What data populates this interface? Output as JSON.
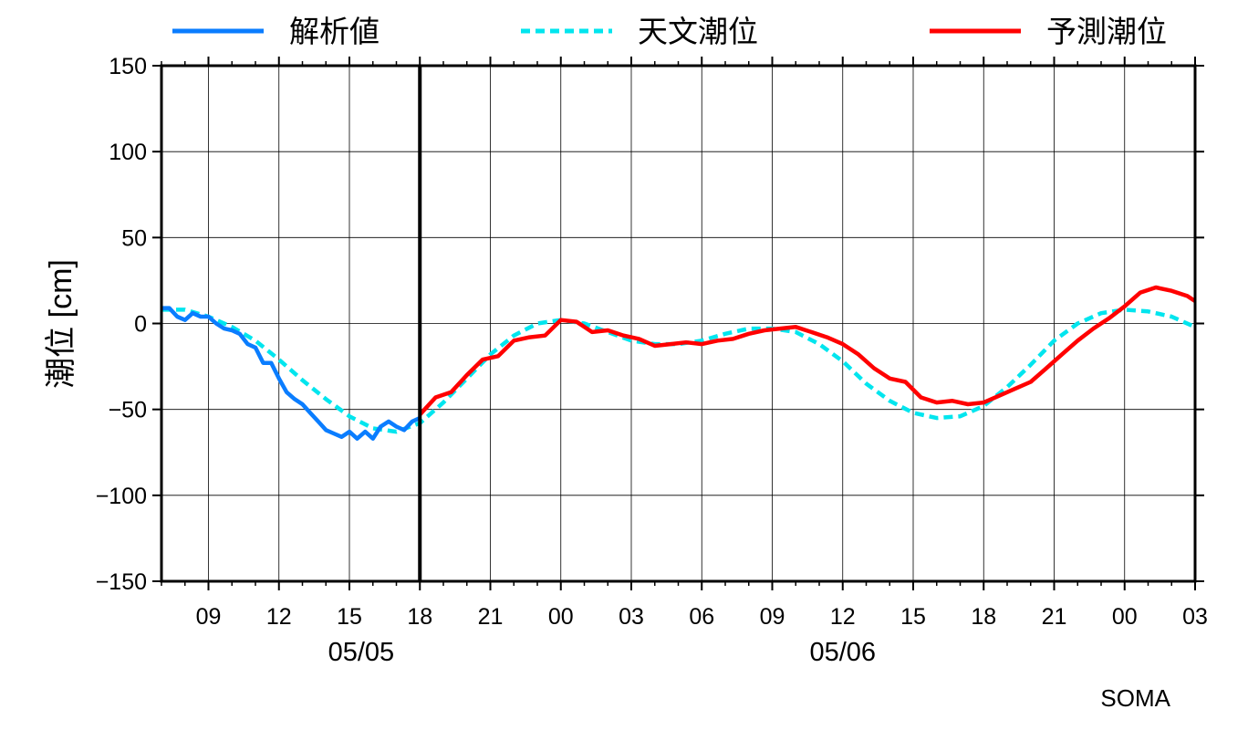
{
  "chart_data": {
    "type": "line",
    "ylabel": "潮位 [cm]",
    "ylim": [
      -150,
      150
    ],
    "yticks": [
      150,
      100,
      50,
      0,
      -50,
      -100,
      -150
    ],
    "ytick_labels": [
      "150",
      "100",
      "50",
      "0",
      "−50",
      "−100",
      "−150"
    ],
    "x_unit": "hours since 05/05 07:00 (axis origin)",
    "xlim": [
      0,
      44
    ],
    "xticks": [
      2,
      5,
      8,
      11,
      14,
      17,
      20,
      23,
      26,
      29,
      32,
      35,
      38,
      41,
      44
    ],
    "xtick_labels": [
      "09",
      "12",
      "15",
      "18",
      "21",
      "00",
      "03",
      "06",
      "09",
      "12",
      "15",
      "18",
      "21",
      "00",
      "03"
    ],
    "date_labels": [
      {
        "x": 8.5,
        "label": "05/05"
      },
      {
        "x": 29,
        "label": "05/06"
      }
    ],
    "current_time_x": 11,
    "station": "SOMA",
    "grid": true,
    "legend_position": "top",
    "series": [
      {
        "name": "解析値",
        "color": "#0a7dff",
        "style": "solid",
        "x": [
          0,
          0.33,
          0.67,
          1,
          1.33,
          1.67,
          2,
          2.33,
          2.67,
          3,
          3.33,
          3.67,
          4,
          4.33,
          4.67,
          5,
          5.33,
          5.67,
          6,
          6.33,
          6.67,
          7,
          7.33,
          7.67,
          8,
          8.33,
          8.67,
          9,
          9.33,
          9.67,
          10,
          10.33,
          10.67,
          11
        ],
        "values": [
          9,
          9,
          4,
          2,
          6,
          4,
          4,
          0,
          -3,
          -4,
          -6,
          -12,
          -14,
          -23,
          -23,
          -32,
          -40,
          -44,
          -47,
          -52,
          -57,
          -62,
          -64,
          -66,
          -63,
          -67,
          -63,
          -67,
          -60,
          -57,
          -60,
          -62,
          -57,
          -55
        ]
      },
      {
        "name": "天文潮位",
        "color": "#00e5ee",
        "style": "dashed",
        "x": [
          0,
          1,
          2,
          3,
          4,
          5,
          6,
          7,
          8,
          9,
          10,
          11,
          12,
          13,
          14,
          15,
          16,
          17,
          18,
          19,
          20,
          21,
          22,
          23,
          24,
          25,
          26,
          27,
          28,
          29,
          30,
          31,
          32,
          33,
          34,
          35,
          36,
          37,
          38,
          39,
          40,
          41,
          42,
          43,
          44
        ],
        "values": [
          8,
          8,
          4,
          -2,
          -10,
          -21,
          -33,
          -44,
          -54,
          -61,
          -63,
          -58,
          -46,
          -32,
          -18,
          -7,
          0,
          2,
          0,
          -5,
          -10,
          -12,
          -12,
          -10,
          -6,
          -3,
          -3,
          -5,
          -12,
          -22,
          -35,
          -45,
          -52,
          -55,
          -54,
          -48,
          -37,
          -24,
          -10,
          0,
          6,
          8,
          7,
          4,
          -2
        ]
      },
      {
        "name": "予測潮位",
        "color": "#ff0000",
        "style": "solid",
        "x": [
          11,
          11.67,
          12.33,
          13,
          13.67,
          14.33,
          15,
          15.67,
          16.33,
          17,
          17.67,
          18.33,
          19,
          19.67,
          20.33,
          21,
          21.67,
          22.33,
          23,
          23.67,
          24.33,
          25,
          25.67,
          26.33,
          27,
          27.67,
          28.33,
          29,
          29.67,
          30.33,
          31,
          31.67,
          32.33,
          33,
          33.67,
          34.33,
          35,
          35.67,
          36.33,
          37,
          37.67,
          38.33,
          39,
          39.67,
          40.33,
          41,
          41.67,
          42.33,
          43,
          43.67,
          44
        ],
        "values": [
          -53,
          -43,
          -40,
          -30,
          -21,
          -19,
          -10,
          -8,
          -7,
          2,
          1,
          -5,
          -4,
          -7,
          -9,
          -13,
          -12,
          -11,
          -12,
          -10,
          -9,
          -6,
          -4,
          -3,
          -2,
          -5,
          -8,
          -12,
          -18,
          -26,
          -32,
          -34,
          -43,
          -46,
          -45,
          -47,
          -46,
          -42,
          -38,
          -34,
          -26,
          -18,
          -10,
          -3,
          3,
          10,
          18,
          21,
          19,
          16,
          13
        ]
      }
    ]
  }
}
